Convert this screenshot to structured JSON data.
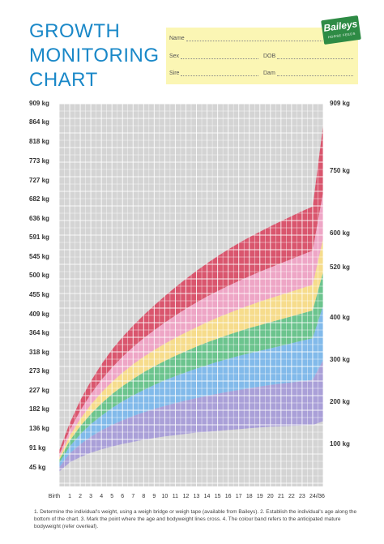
{
  "header": {
    "title_lines": [
      "GROWTH",
      "MONITORING",
      "CHART"
    ],
    "logo_text": "Baileys",
    "logo_subtext": "HORSE FEEDS"
  },
  "form": {
    "name_label": "Name",
    "sex_label": "Sex",
    "dob_label": "DOB",
    "sire_label": "Sire",
    "dam_label": "Dam"
  },
  "colors": {
    "title": "#1a88c8",
    "form_bg": "#fbf6b4",
    "grid_bg": "#d4d4d4",
    "red": "#d9566e",
    "pink": "#eea6c6",
    "yellow": "#f6dc8c",
    "green": "#6cc48e",
    "blue": "#82baea",
    "purple": "#aaa0d8"
  },
  "chart_data": {
    "type": "area",
    "x_tick_labels": [
      "Birth",
      "1",
      "2",
      "3",
      "4",
      "5",
      "6",
      "7",
      "8",
      "9",
      "10",
      "11",
      "12",
      "13",
      "14",
      "15",
      "16",
      "17",
      "18",
      "19",
      "20",
      "21",
      "22",
      "23",
      "24",
      "//",
      "36"
    ],
    "x": [
      0,
      1,
      2,
      3,
      4,
      5,
      6,
      7,
      8,
      9,
      10,
      11,
      12,
      13,
      14,
      15,
      16,
      17,
      18,
      19,
      20,
      21,
      22,
      23,
      24,
      36
    ],
    "ylim": [
      0,
      909
    ],
    "y_ticks_left": [
      "909 kg",
      "864 kg",
      "818 kg",
      "773 kg",
      "727 kg",
      "682 kg",
      "636 kg",
      "591 kg",
      "545 kg",
      "500 kg",
      "455 kg",
      "409 kg",
      "364 kg",
      "318 kg",
      "273 kg",
      "227 kg",
      "182 kg",
      "136 kg",
      "91 kg",
      "45 kg"
    ],
    "y_ticks_left_values": [
      909,
      864,
      818,
      773,
      727,
      682,
      636,
      591,
      545,
      500,
      455,
      409,
      364,
      318,
      273,
      227,
      182,
      136,
      91,
      45
    ],
    "right_labels": [
      "909 kg",
      "750 kg",
      "600 kg",
      "520 kg",
      "400 kg",
      "300 kg",
      "200 kg",
      "100 kg"
    ],
    "right_label_values": [
      909,
      750,
      600,
      520,
      400,
      300,
      200,
      100
    ],
    "boundaries": [
      [
        85,
        150,
        205,
        250,
        290,
        325,
        355,
        382,
        407,
        430,
        452,
        473,
        493,
        512,
        530,
        547,
        563,
        578,
        592,
        605,
        618,
        630,
        642,
        654,
        665,
        860
      ],
      [
        75,
        133,
        180,
        219,
        253,
        282,
        308,
        331,
        352,
        371,
        389,
        406,
        422,
        437,
        451,
        464,
        476,
        488,
        499,
        510,
        520,
        530,
        540,
        550,
        560,
        700
      ],
      [
        68,
        120,
        160,
        194,
        223,
        248,
        270,
        290,
        308,
        324,
        339,
        353,
        366,
        378,
        390,
        401,
        411,
        421,
        430,
        439,
        447,
        455,
        463,
        471,
        479,
        590
      ],
      [
        62,
        108,
        143,
        172,
        197,
        219,
        238,
        255,
        271,
        285,
        298,
        310,
        321,
        332,
        342,
        351,
        360,
        368,
        376,
        383,
        390,
        397,
        404,
        411,
        418,
        510
      ],
      [
        55,
        95,
        124,
        148,
        168,
        186,
        202,
        216,
        229,
        241,
        252,
        262,
        271,
        280,
        288,
        296,
        303,
        310,
        316,
        322,
        328,
        334,
        340,
        346,
        352,
        430
      ],
      [
        45,
        78,
        100,
        118,
        133,
        146,
        157,
        167,
        176,
        184,
        191,
        198,
        204,
        210,
        215,
        220,
        225,
        229,
        233,
        237,
        241,
        244,
        247,
        250,
        253,
        300
      ],
      [
        35,
        57,
        70,
        80,
        88,
        95,
        101,
        106,
        111,
        115,
        119,
        122,
        125,
        128,
        130,
        132,
        134,
        136,
        138,
        140,
        142,
        143,
        144,
        145,
        146,
        155
      ]
    ],
    "band_colors": [
      "red",
      "pink",
      "yellow",
      "green",
      "blue",
      "purple"
    ]
  },
  "footer": {
    "text": "1. Determine the individual's weight, using a weigh bridge or weigh tape (available from Baileys).  2. Establish the individual's age along the bottom of the chart.  3. Mark the point where the age and bodyweight lines cross.  4. The colour band refers to the anticipated mature bodyweight (refer overleaf)."
  }
}
